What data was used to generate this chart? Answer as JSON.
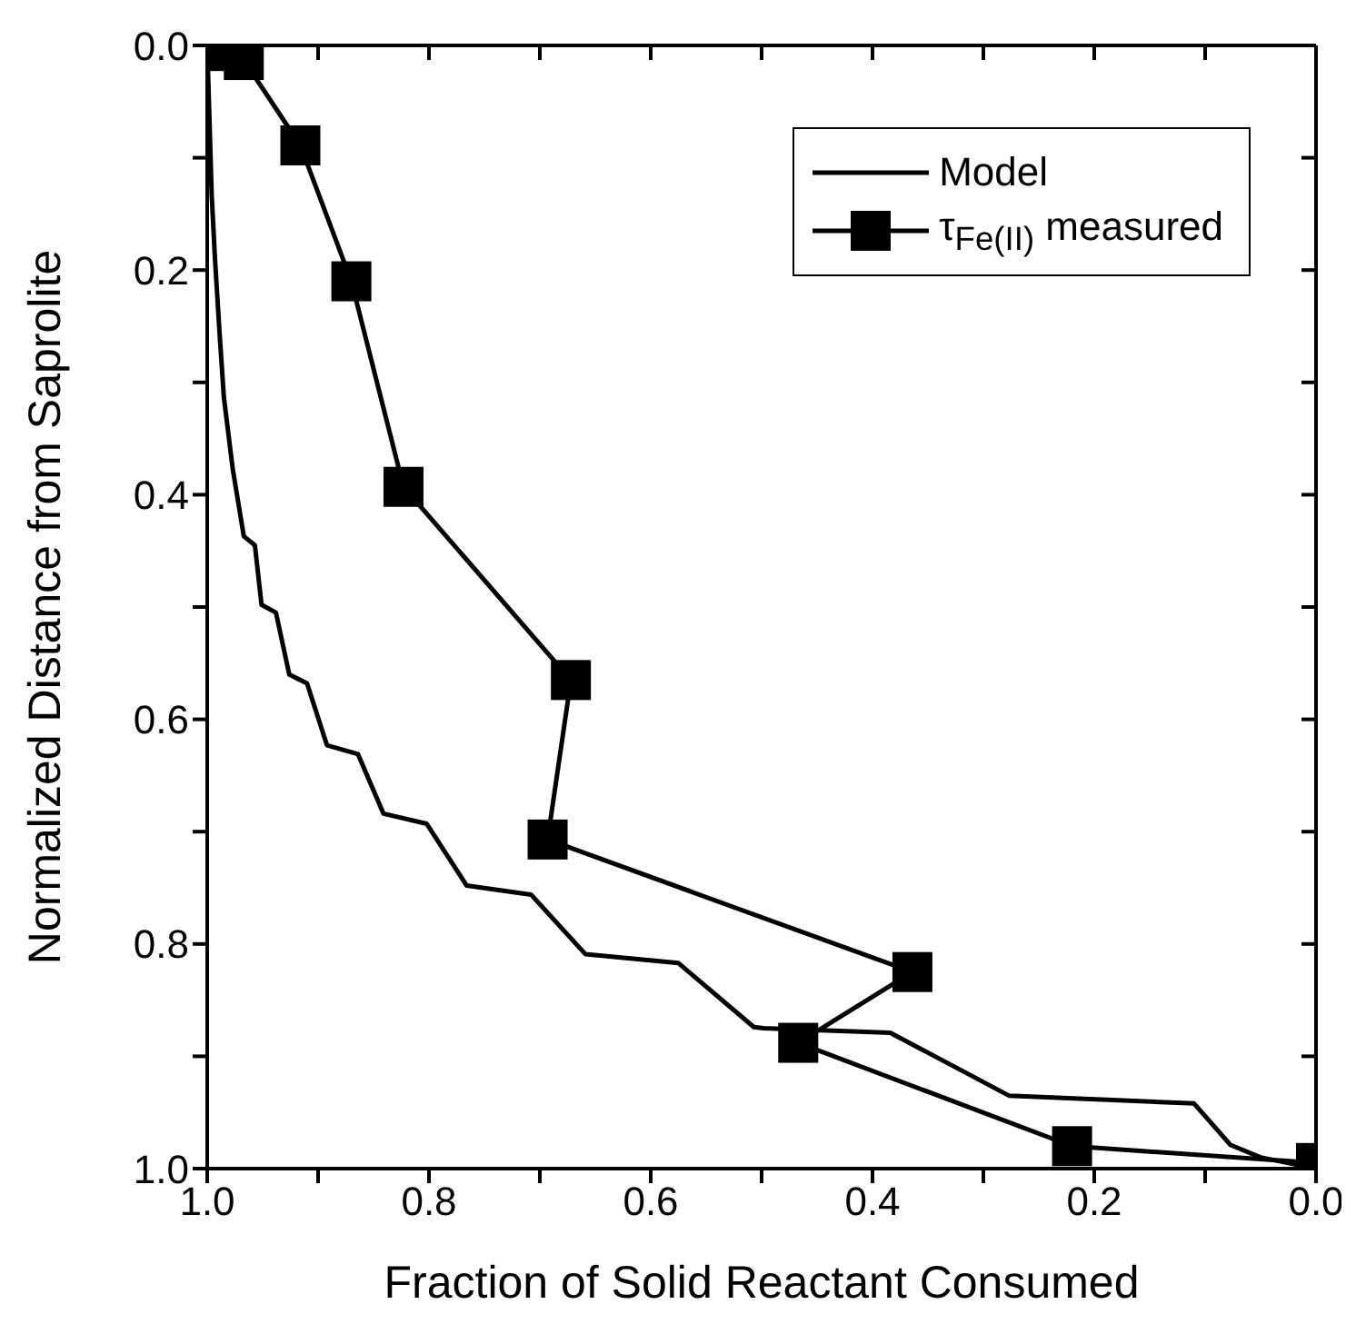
{
  "chart_data": {
    "type": "line",
    "xlabel": "Fraction of Solid Reactant Consumed",
    "ylabel": "Normalized Distance from Saprolite",
    "xlim": [
      1.0,
      0.0
    ],
    "ylim": [
      1.0,
      0.0
    ],
    "xticks": [
      {
        "value": 0,
        "label": "0.0"
      },
      {
        "value": 0.1,
        "label": null
      },
      {
        "value": 0.2,
        "label": "0.2"
      },
      {
        "value": 0.3,
        "label": null
      },
      {
        "value": 0.4,
        "label": "0.4"
      },
      {
        "value": 0.5,
        "label": null
      },
      {
        "value": 0.6,
        "label": "0.6"
      },
      {
        "value": 0.7,
        "label": null
      },
      {
        "value": 0.8,
        "label": "0.8"
      },
      {
        "value": 0.9,
        "label": null
      },
      {
        "value": 1,
        "label": "1.0"
      }
    ],
    "yticks": [
      {
        "value": 0,
        "label": "0.0"
      },
      {
        "value": 0.1,
        "label": null
      },
      {
        "value": 0.2,
        "label": "0.2"
      },
      {
        "value": 0.3,
        "label": null
      },
      {
        "value": 0.4,
        "label": "0.4"
      },
      {
        "value": 0.5,
        "label": null
      },
      {
        "value": 0.6,
        "label": "0.6"
      },
      {
        "value": 0.7,
        "label": null
      },
      {
        "value": 0.8,
        "label": "0.8"
      },
      {
        "value": 0.9,
        "label": null
      },
      {
        "value": 1,
        "label": "1.0"
      }
    ],
    "legend": "top right",
    "line_style": "solid",
    "series": [
      {
        "name": "Model",
        "color": "#000000",
        "marker": "none",
        "x": [
          1.0,
          0.996,
          0.993,
          0.989,
          0.985,
          0.977,
          0.967,
          0.957,
          0.951,
          0.938,
          0.926,
          0.91,
          0.892,
          0.864,
          0.841,
          0.802,
          0.766,
          0.708,
          0.659,
          0.575,
          0.507,
          0.498,
          0.384,
          0.277,
          0.11,
          0.077,
          0.05,
          0.0
        ],
        "values": [
          0.0,
          0.132,
          0.19,
          0.254,
          0.313,
          0.377,
          0.437,
          0.445,
          0.498,
          0.505,
          0.56,
          0.568,
          0.623,
          0.631,
          0.684,
          0.693,
          0.748,
          0.756,
          0.809,
          0.817,
          0.874,
          0.875,
          0.879,
          0.935,
          0.942,
          0.979,
          0.99,
          1.0
        ]
      },
      {
        "name": "τ$_{Fe(II)}$ measured",
        "color": "#000000",
        "marker": "square",
        "x": [
          0.99,
          0.967,
          0.916,
          0.87,
          0.823,
          0.672,
          0.693,
          0.364,
          0.467,
          0.22,
          0.0
        ],
        "values": [
          0.005,
          0.013,
          0.089,
          0.21,
          0.393,
          0.565,
          0.707,
          0.825,
          0.888,
          0.98,
          0.995
        ]
      }
    ]
  }
}
